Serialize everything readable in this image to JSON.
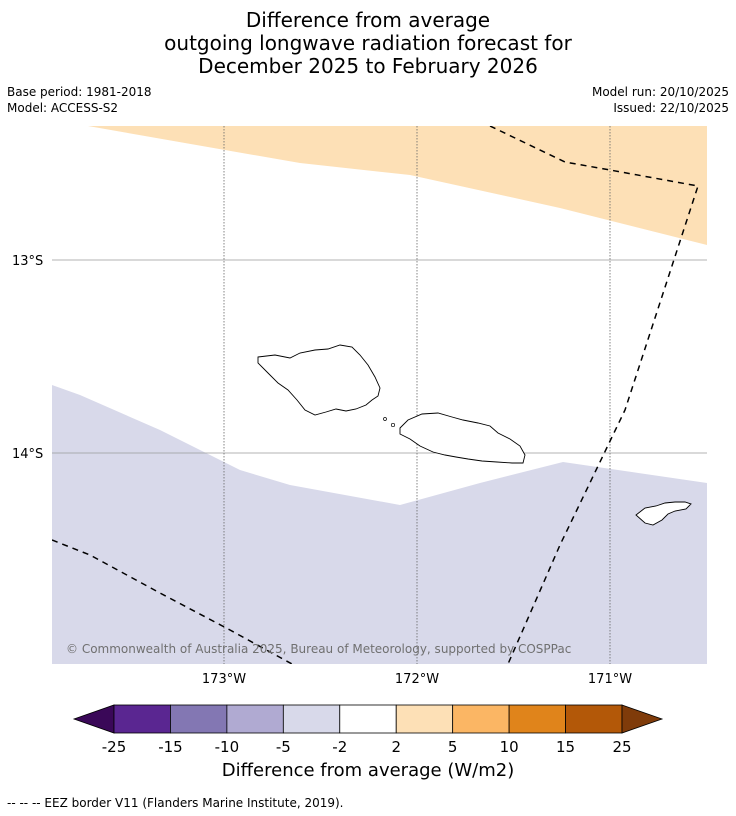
{
  "title": {
    "line1": "Difference from average",
    "line2": "outgoing longwave radiation forecast for",
    "line3": "December 2025 to February 2026"
  },
  "meta": {
    "base_period": "Base period: 1981-2018",
    "model": "Model: ACCESS-S2",
    "model_run": "Model run: 20/10/2025",
    "issued": "Issued: 22/10/2025"
  },
  "map": {
    "lat_labels": [
      "13°S",
      "14°S"
    ],
    "lon_labels": [
      "173°W",
      "172°W",
      "171°W"
    ],
    "copyright": "© Commonwealth of Australia 2025, Bureau of Meteorology, supported by COSPPac",
    "fill_colors": {
      "positive_2_5": "#fde0b6",
      "negative_5_2": "#d8d9ea"
    }
  },
  "colorbar": {
    "title": "Difference from average (W/m2)",
    "tick_labels": [
      "-25",
      "-15",
      "-10",
      "-5",
      "-2",
      "2",
      "5",
      "10",
      "15",
      "25"
    ],
    "colors": [
      "#5a2691",
      "#8377b3",
      "#b0aad2",
      "#d8d9ea",
      "#ffffff",
      "#fde0b6",
      "#fbb664",
      "#e0841b",
      "#b35808"
    ],
    "extend_low_color": "#3a0858",
    "extend_high_color": "#7f3b0a"
  },
  "footer": {
    "legend_line": "--  --  -- EEZ border V11 (Flanders Marine Institute, 2019)."
  }
}
